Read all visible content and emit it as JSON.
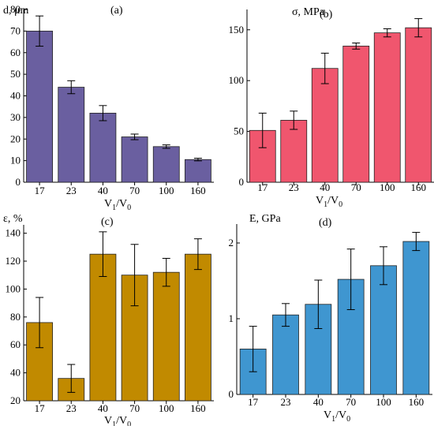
{
  "chart_data": [
    {
      "type": "bar",
      "panel": "(a)",
      "ylabel": "d, μm",
      "xlabel_main": "V",
      "xlabel_sub1": "1",
      "xlabel_mid": "/V",
      "xlabel_sub0": "0",
      "categories": [
        "17",
        "23",
        "40",
        "70",
        "100",
        "160"
      ],
      "values": [
        70,
        44,
        32,
        21,
        16.5,
        10.5
      ],
      "errors": [
        7,
        3,
        3.5,
        1.3,
        0.8,
        0.6
      ],
      "ylim": [
        0,
        80
      ],
      "yticks": [
        0,
        10,
        20,
        30,
        40,
        50,
        60,
        70,
        80
      ],
      "color": "#6a5fa0"
    },
    {
      "type": "bar",
      "panel": "(b)",
      "ylabel": "σ, MPa",
      "xlabel_main": "V",
      "xlabel_sub1": "1",
      "xlabel_mid": "/V",
      "xlabel_sub0": "0",
      "categories": [
        "17",
        "23",
        "40",
        "70",
        "100",
        "160"
      ],
      "values": [
        51,
        61,
        112,
        134,
        147,
        152
      ],
      "errors": [
        17,
        9,
        15,
        3,
        4,
        9
      ],
      "ylim": [
        0,
        170
      ],
      "yticks": [
        0,
        50,
        100,
        150
      ],
      "color": "#f0566e"
    },
    {
      "type": "bar",
      "panel": "(c)",
      "ylabel": "ε, %",
      "xlabel_main": "V",
      "xlabel_sub1": "1",
      "xlabel_mid": "/V",
      "xlabel_sub0": "0",
      "categories": [
        "17",
        "23",
        "40",
        "70",
        "100",
        "160"
      ],
      "values": [
        76,
        36,
        125,
        110,
        112,
        125
      ],
      "errors": [
        18,
        10,
        16,
        22,
        10,
        11
      ],
      "ylim": [
        20,
        146
      ],
      "yticks": [
        20,
        40,
        60,
        80,
        100,
        120,
        140
      ],
      "color": "#c18a00"
    },
    {
      "type": "bar",
      "panel": "(d)",
      "ylabel": "E, GPa",
      "xlabel_main": "V",
      "xlabel_sub1": "1",
      "xlabel_mid": "/V",
      "xlabel_sub0": "0",
      "categories": [
        "17",
        "23",
        "40",
        "70",
        "100",
        "160"
      ],
      "values": [
        0.6,
        1.05,
        1.19,
        1.52,
        1.7,
        2.02
      ],
      "errors": [
        0.3,
        0.15,
        0.32,
        0.4,
        0.25,
        0.12
      ],
      "ylim": [
        0,
        2.25
      ],
      "yticks": [
        0,
        1,
        2
      ],
      "color": "#3f96d0"
    }
  ]
}
